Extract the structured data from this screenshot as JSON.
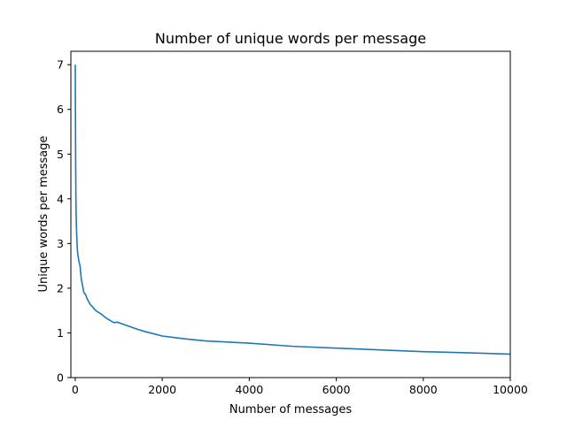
{
  "chart_data": {
    "type": "line",
    "title": "Number of unique words per message",
    "xlabel": "Number of messages",
    "ylabel": "Unique words per message",
    "xlim": [
      -100,
      10000
    ],
    "ylim": [
      0,
      7.3
    ],
    "xticks": [
      0,
      2000,
      4000,
      6000,
      8000,
      10000
    ],
    "yticks": [
      0,
      1,
      2,
      3,
      4,
      5,
      6,
      7
    ],
    "grid": false,
    "color": "#1f77b4",
    "series": [
      {
        "x": [
          1,
          5,
          10,
          15,
          20,
          30,
          40,
          50,
          60,
          70,
          80,
          90,
          100,
          110,
          120,
          130,
          140,
          150,
          160,
          170,
          180,
          190,
          200,
          220,
          240,
          260,
          280,
          300,
          320,
          350,
          400,
          450,
          500,
          550,
          600,
          650,
          700,
          750,
          800,
          850,
          900,
          950,
          1000,
          1200,
          1400,
          1600,
          1800,
          2000,
          2500,
          3000,
          4000,
          5000,
          6000,
          7000,
          8000,
          9000,
          10000
        ],
        "values": [
          7.0,
          6.0,
          4.8,
          4.1,
          3.7,
          3.3,
          3.05,
          2.85,
          2.75,
          2.7,
          2.62,
          2.58,
          2.55,
          2.5,
          2.4,
          2.3,
          2.2,
          2.15,
          2.1,
          2.05,
          2.0,
          1.95,
          1.9,
          1.88,
          1.85,
          1.8,
          1.75,
          1.72,
          1.68,
          1.63,
          1.58,
          1.52,
          1.48,
          1.45,
          1.42,
          1.38,
          1.34,
          1.31,
          1.28,
          1.25,
          1.23,
          1.24,
          1.23,
          1.16,
          1.09,
          1.03,
          0.98,
          0.93,
          0.87,
          0.82,
          0.77,
          0.7,
          0.66,
          0.62,
          0.58,
          0.555,
          0.525
        ]
      }
    ]
  }
}
